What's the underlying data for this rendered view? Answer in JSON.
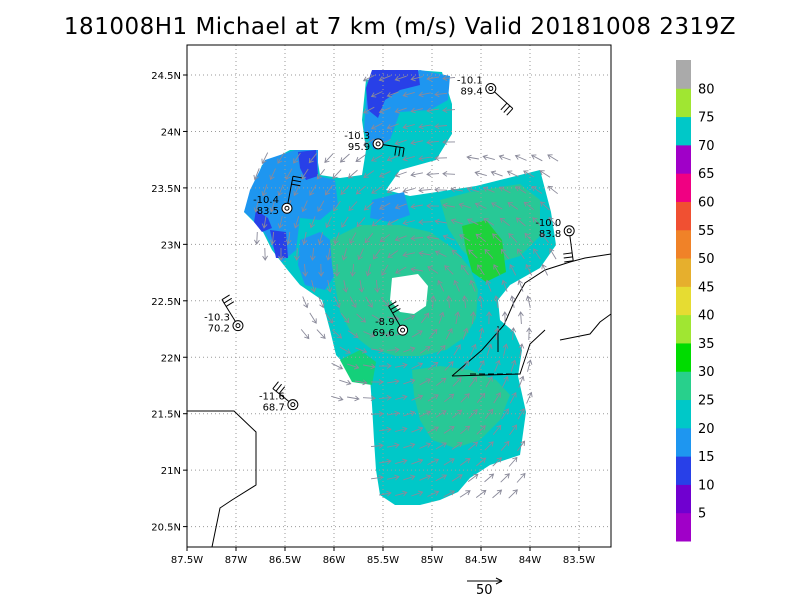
{
  "chart_data": {
    "type": "heatmap",
    "title": "181008H1 Michael at 7 km (m/s) Valid 20181008 2319Z",
    "x_ticks": [
      "87.5W",
      "87W",
      "86.5W",
      "86W",
      "85.5W",
      "85W",
      "84.5W",
      "84W",
      "83.5W"
    ],
    "y_ticks": [
      "24.5N",
      "24N",
      "23.5N",
      "23N",
      "22.5N",
      "22N",
      "21.5N",
      "21N",
      "20.5N"
    ],
    "xlim": [
      -87.5,
      -83.25
    ],
    "ylim": [
      20.3,
      24.6
    ],
    "grid": true,
    "units": "m/s",
    "colorbar": {
      "labels": [
        "5",
        "10",
        "15",
        "20",
        "25",
        "30",
        "35",
        "40",
        "45",
        "50",
        "55",
        "60",
        "65",
        "70",
        "75",
        "80"
      ],
      "colors": [
        "#a000c8",
        "#7000d0",
        "#2840e8",
        "#1e96f0",
        "#00c8c8",
        "#28d08c",
        "#00dc00",
        "#a0e632",
        "#e6dc32",
        "#e6af2d",
        "#f08228",
        "#f05032",
        "#f00082",
        "#a000c8",
        "#00c8c8",
        "#a0e632",
        "#aaaaaa"
      ]
    },
    "stations": [
      {
        "temp": "-10.1",
        "speed": "89.4",
        "lon": -84.4,
        "lat": 24.38
      },
      {
        "temp": "-10.3",
        "speed": "95.9",
        "lon": -85.55,
        "lat": 23.89
      },
      {
        "temp": "-10.4",
        "speed": "83.5",
        "lon": -86.48,
        "lat": 23.32
      },
      {
        "temp": "-10.0",
        "speed": "83.8",
        "lon": -83.6,
        "lat": 23.12
      },
      {
        "temp": "-10.3",
        "speed": "70.2",
        "lon": -86.98,
        "lat": 22.28
      },
      {
        "temp": "-8.9",
        "speed": "69.6",
        "lon": -85.3,
        "lat": 22.24
      },
      {
        "temp": "-11.6",
        "speed": "68.7",
        "lon": -86.42,
        "lat": 21.58
      }
    ],
    "scale_vector_label": "50"
  }
}
